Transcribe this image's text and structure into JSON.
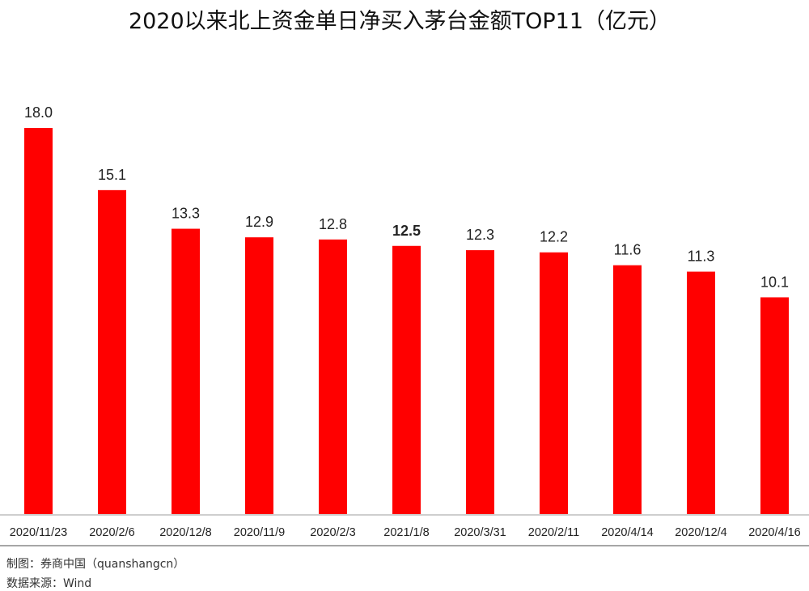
{
  "chart_data": {
    "type": "bar",
    "title": "2020以来北上资金单日净买入茅台金额TOP11（亿元）",
    "categories": [
      "2020/11/23",
      "2020/2/6",
      "2020/12/8",
      "2020/11/9",
      "2020/2/3",
      "2021/1/8",
      "2020/3/31",
      "2020/2/11",
      "2020/4/14",
      "2020/12/4",
      "2020/4/16"
    ],
    "values": [
      18.0,
      15.1,
      13.3,
      12.9,
      12.8,
      12.5,
      12.3,
      12.2,
      11.6,
      11.3,
      10.1
    ],
    "value_labels": [
      "18.0",
      "15.1",
      "13.3",
      "12.9",
      "12.8",
      "12.5",
      "12.3",
      "12.2",
      "11.6",
      "11.3",
      "10.1"
    ],
    "highlight_index": 5,
    "ylim": [
      0,
      18
    ],
    "grid": false,
    "legend": false,
    "bar_color": "#ff0000"
  },
  "footer": {
    "maker": "制图：券商中国（quanshangcn）",
    "source": "数据来源：Wind"
  }
}
